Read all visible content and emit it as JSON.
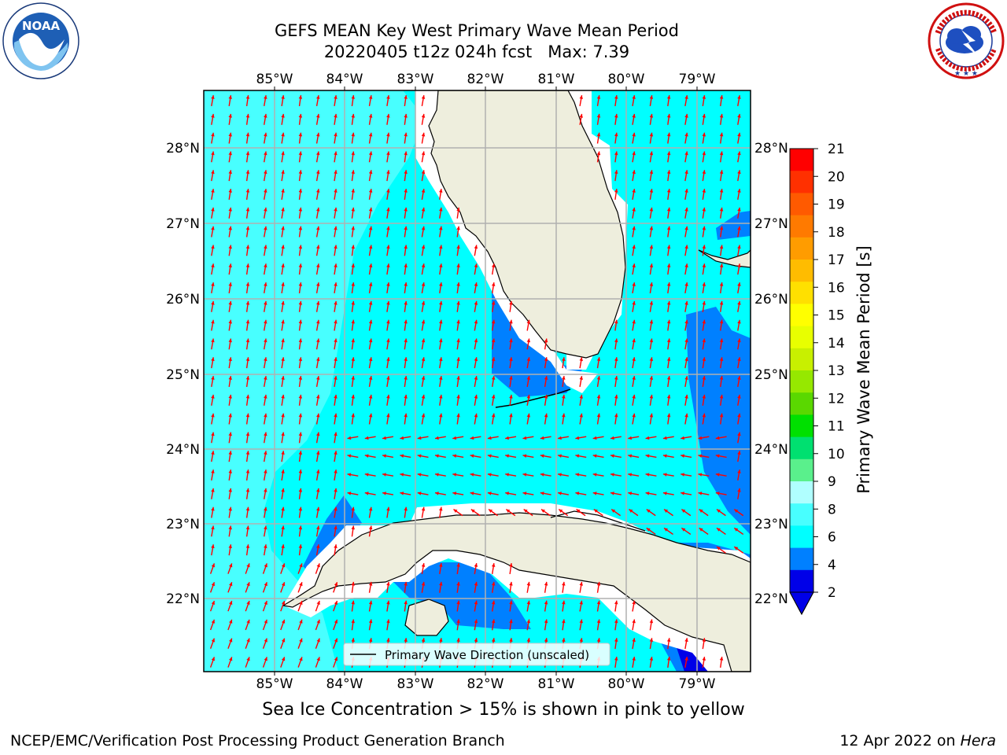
{
  "header": {
    "title_line1": "GEFS MEAN Key West Primary Wave Mean Period",
    "title_line2": "20220405 t12z 024h fcst   Max: 7.39"
  },
  "logos": {
    "left": {
      "icon": "noaa-logo",
      "text": "NOAA"
    },
    "right": {
      "icon": "national-weather-service-logo"
    }
  },
  "map": {
    "lon_labels": [
      "85°W",
      "84°W",
      "83°W",
      "82°W",
      "81°W",
      "80°W",
      "79°W"
    ],
    "lat_labels": [
      "28°N",
      "27°N",
      "26°N",
      "25°N",
      "24°N",
      "23°N",
      "22°N"
    ],
    "legend_label": "Primary Wave Direction (unscaled)",
    "colors": {
      "land": "#eeeedd",
      "ocean_4_6": "#00ffff",
      "ocean_6_8": "#48ffff",
      "ocean_2_4": "#0080ff",
      "ocean_lt_2": "#0000e8",
      "arrow": "#ff0000",
      "grid": "#b0b0b0"
    }
  },
  "colorbar": {
    "title": "Primary Wave Mean Period [s]",
    "ticks": [
      "21",
      "20",
      "19",
      "18",
      "17",
      "16",
      "15",
      "14",
      "13",
      "12",
      "11",
      "10",
      "9",
      "8",
      "6",
      "4",
      "2"
    ],
    "colors": [
      "#ff0000",
      "#ff3000",
      "#ff5a00",
      "#ff7a00",
      "#ff9c00",
      "#ffbc00",
      "#ffe000",
      "#ffff00",
      "#e8ff00",
      "#c8f000",
      "#96e800",
      "#5ad800",
      "#00e000",
      "#00e070",
      "#5af08c",
      "#b0ffff",
      "#48ffff",
      "#00ffff",
      "#0080ff",
      "#0000e8"
    ]
  },
  "subtitle": "Sea Ice Concentration > 15% is shown in pink to yellow",
  "footer": {
    "left": "NCEP/EMC/Verification Post Processing Product Generation Branch",
    "right_date": "12 Apr 2022 on ",
    "right_host": "Hera"
  }
}
